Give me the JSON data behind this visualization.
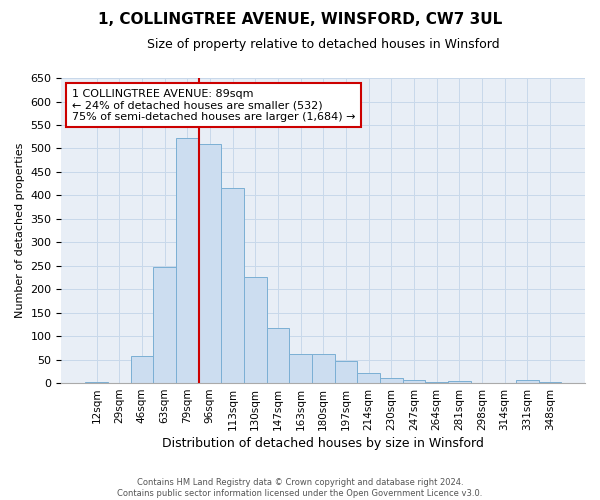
{
  "title": "1, COLLINGTREE AVENUE, WINSFORD, CW7 3UL",
  "subtitle": "Size of property relative to detached houses in Winsford",
  "xlabel": "Distribution of detached houses by size in Winsford",
  "ylabel": "Number of detached properties",
  "footer_line1": "Contains HM Land Registry data © Crown copyright and database right 2024.",
  "footer_line2": "Contains public sector information licensed under the Open Government Licence v3.0.",
  "bar_labels": [
    "12sqm",
    "29sqm",
    "46sqm",
    "63sqm",
    "79sqm",
    "96sqm",
    "113sqm",
    "130sqm",
    "147sqm",
    "163sqm",
    "180sqm",
    "197sqm",
    "214sqm",
    "230sqm",
    "247sqm",
    "264sqm",
    "281sqm",
    "298sqm",
    "314sqm",
    "331sqm",
    "348sqm"
  ],
  "bar_values": [
    2,
    0,
    58,
    248,
    522,
    510,
    415,
    225,
    117,
    63,
    63,
    47,
    22,
    10,
    7,
    2,
    5,
    1,
    0,
    7,
    2
  ],
  "bar_color": "#ccddf0",
  "bar_edge_color": "#7bafd4",
  "grid_color": "#c8d8ea",
  "bg_color": "#e8eef6",
  "property_label": "1 COLLINGTREE AVENUE: 89sqm",
  "annotation_line1": "← 24% of detached houses are smaller (532)",
  "annotation_line2": "75% of semi-detached houses are larger (1,684) →",
  "vline_color": "#cc0000",
  "annotation_box_color": "#cc0000",
  "ylim": [
    0,
    650
  ],
  "yticks": [
    0,
    50,
    100,
    150,
    200,
    250,
    300,
    350,
    400,
    450,
    500,
    550,
    600,
    650
  ]
}
